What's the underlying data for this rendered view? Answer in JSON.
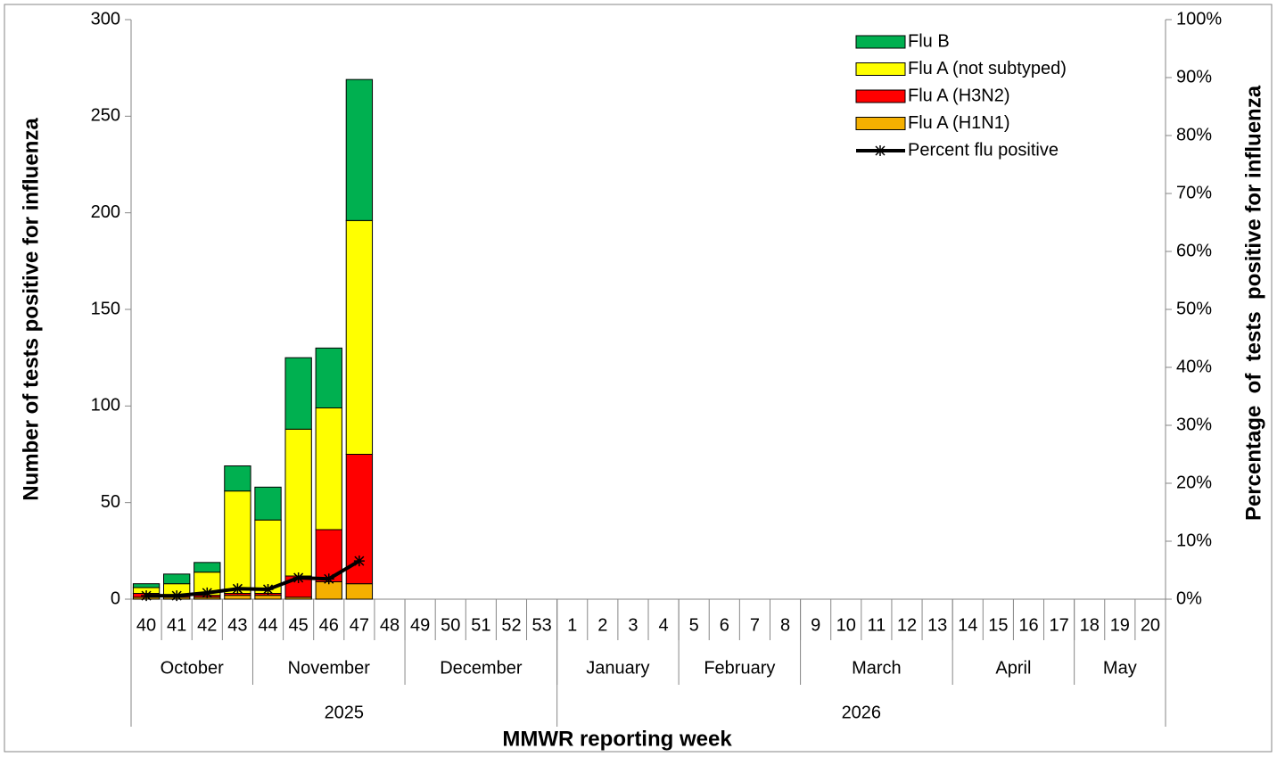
{
  "chart_data": {
    "type": "bar",
    "stacked": true,
    "x_label": "MMWR reporting week",
    "y_label": "Number of tests positive for influenza",
    "y2_label": "Percentage  of  tests  positive for influenza",
    "categories": [
      "40",
      "41",
      "42",
      "43",
      "44",
      "45",
      "46",
      "47",
      "48",
      "49",
      "50",
      "51",
      "52",
      "53",
      "1",
      "2",
      "3",
      "4",
      "5",
      "6",
      "7",
      "8",
      "9",
      "10",
      "11",
      "12",
      "13",
      "14",
      "15",
      "16",
      "17",
      "18",
      "19",
      "20"
    ],
    "month_groups": [
      {
        "label": "October",
        "span": 4
      },
      {
        "label": "November",
        "span": 5
      },
      {
        "label": "December",
        "span": 5
      },
      {
        "label": "January",
        "span": 4
      },
      {
        "label": "February",
        "span": 4
      },
      {
        "label": "March",
        "span": 5
      },
      {
        "label": "April",
        "span": 4
      },
      {
        "label": "May",
        "span": 3
      }
    ],
    "year_groups": [
      {
        "label": "2025",
        "span": 14
      },
      {
        "label": "2026",
        "span": 20
      }
    ],
    "series": [
      {
        "name": "Flu A (H1N1)",
        "type": "bar",
        "color": "#f5b000",
        "values": [
          1,
          1,
          1,
          2,
          2,
          1,
          9,
          8,
          null,
          null,
          null,
          null,
          null,
          null,
          null,
          null,
          null,
          null,
          null,
          null,
          null,
          null,
          null,
          null,
          null,
          null,
          null,
          null,
          null,
          null,
          null,
          null,
          null,
          null
        ]
      },
      {
        "name": "Flu A (H3N2)",
        "type": "bar",
        "color": "#ff0000",
        "values": [
          2,
          1,
          1,
          1,
          1,
          11,
          27,
          67,
          null,
          null,
          null,
          null,
          null,
          null,
          null,
          null,
          null,
          null,
          null,
          null,
          null,
          null,
          null,
          null,
          null,
          null,
          null,
          null,
          null,
          null,
          null,
          null,
          null,
          null
        ]
      },
      {
        "name": "Flu A (not subtyped)",
        "type": "bar",
        "color": "#ffff00",
        "values": [
          3,
          6,
          12,
          53,
          38,
          76,
          63,
          121,
          null,
          null,
          null,
          null,
          null,
          null,
          null,
          null,
          null,
          null,
          null,
          null,
          null,
          null,
          null,
          null,
          null,
          null,
          null,
          null,
          null,
          null,
          null,
          null,
          null,
          null
        ]
      },
      {
        "name": "Flu B",
        "type": "bar",
        "color": "#00b050",
        "values": [
          2,
          5,
          5,
          13,
          17,
          37,
          31,
          73,
          null,
          null,
          null,
          null,
          null,
          null,
          null,
          null,
          null,
          null,
          null,
          null,
          null,
          null,
          null,
          null,
          null,
          null,
          null,
          null,
          null,
          null,
          null,
          null,
          null,
          null
        ]
      },
      {
        "name": "Percent flu positive",
        "type": "line",
        "axis": "y2",
        "color": "#000000",
        "values": [
          0.6,
          0.6,
          1.1,
          1.8,
          1.7,
          3.7,
          3.5,
          6.6,
          null,
          null,
          null,
          null,
          null,
          null,
          null,
          null,
          null,
          null,
          null,
          null,
          null,
          null,
          null,
          null,
          null,
          null,
          null,
          null,
          null,
          null,
          null,
          null,
          null,
          null
        ]
      }
    ],
    "ylim": [
      0,
      300
    ],
    "yticks": [
      0,
      50,
      100,
      150,
      200,
      250,
      300
    ],
    "y2lim": [
      0,
      100
    ],
    "y2ticks": [
      {
        "value": 0,
        "label": "0%"
      },
      {
        "value": 10,
        "label": "10%"
      },
      {
        "value": 20,
        "label": "20%"
      },
      {
        "value": 30,
        "label": "30%"
      },
      {
        "value": 40,
        "label": "40%"
      },
      {
        "value": 50,
        "label": "50%"
      },
      {
        "value": 60,
        "label": "60%"
      },
      {
        "value": 70,
        "label": "70%"
      },
      {
        "value": 80,
        "label": "80%"
      },
      {
        "value": 90,
        "label": "90%"
      },
      {
        "value": 100,
        "label": "100%"
      }
    ],
    "grid": false,
    "legend": "top-right"
  }
}
